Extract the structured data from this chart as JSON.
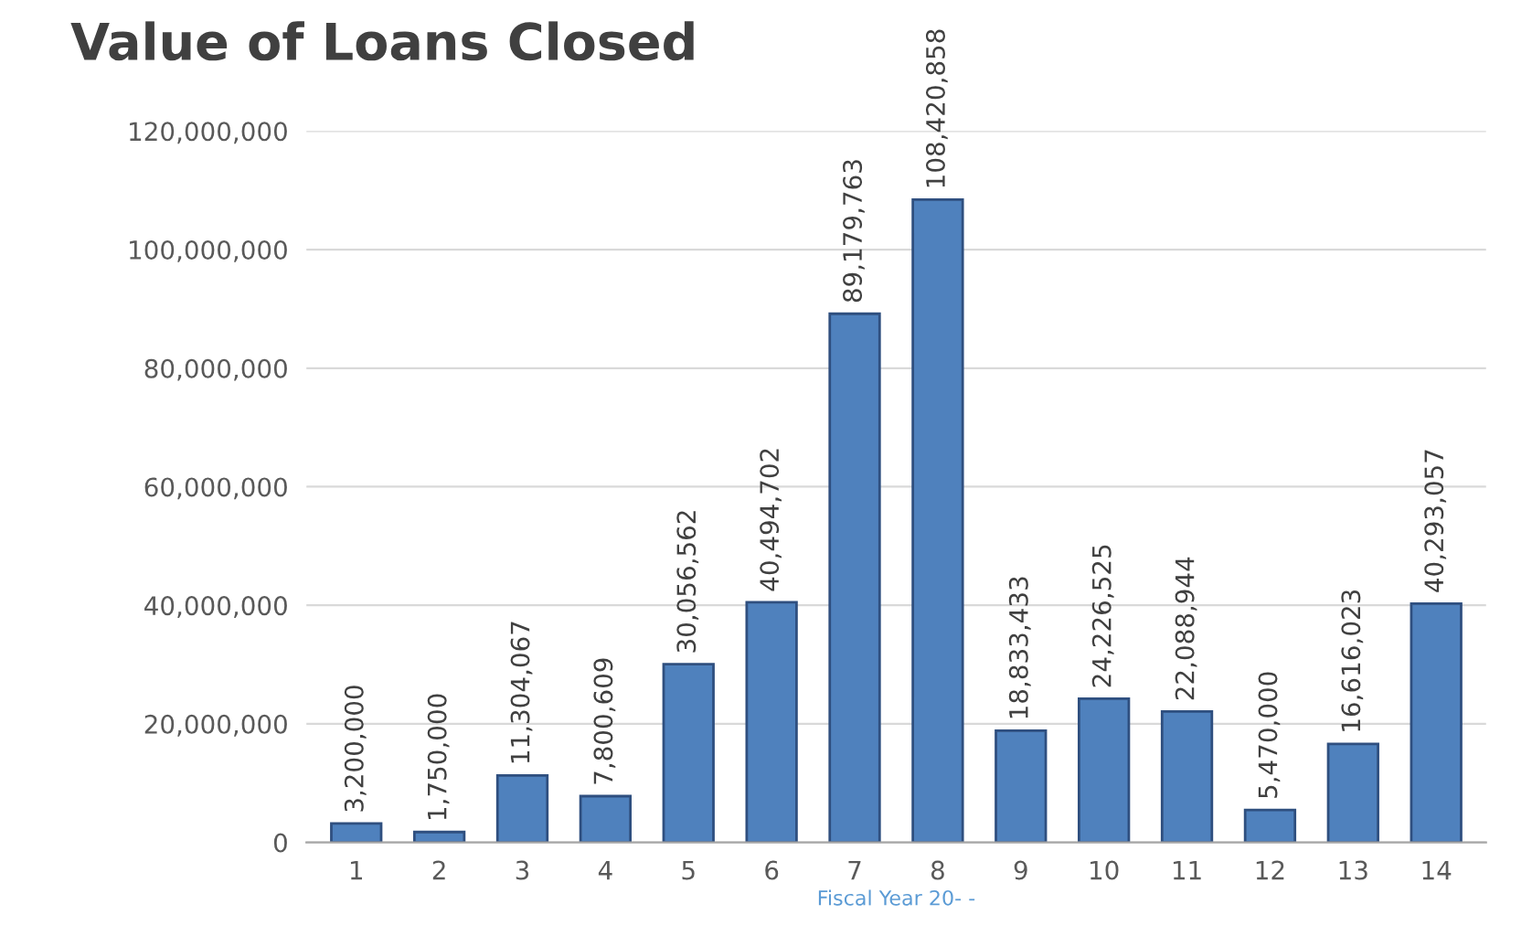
{
  "chart_data": {
    "type": "bar",
    "title": "Value of Loans Closed",
    "xlabel": "Fiscal Year 20- -",
    "categories": [
      "1",
      "2",
      "3",
      "4",
      "5",
      "6",
      "7",
      "8",
      "9",
      "10",
      "11",
      "12",
      "13",
      "14"
    ],
    "values": [
      3200000,
      1750000,
      11304067,
      7800609,
      30056562,
      40494702,
      89179763,
      108420858,
      18833433,
      24226525,
      22088944,
      5470000,
      16616023,
      40293057
    ],
    "value_labels": [
      "3,200,000",
      "1,750,000",
      "11,304,067",
      "7,800,609",
      "30,056,562",
      "40,494,702",
      "89,179,763",
      "108,420,858",
      "18,833,433",
      "24,226,525",
      "22,088,944",
      "5,470,000",
      "16,616,023",
      "40,293,057"
    ],
    "color": "#4f81bd",
    "ylim": [
      0,
      120000000
    ],
    "yticks": [
      {
        "value": 0,
        "label": "0"
      },
      {
        "value": 20000000,
        "label": "20,000,000"
      },
      {
        "value": 40000000,
        "label": "40,000,000"
      },
      {
        "value": 60000000,
        "label": "60,000,000"
      },
      {
        "value": 80000000,
        "label": "80,000,000"
      },
      {
        "value": 100000000,
        "label": "100,000,000"
      },
      {
        "value": 120000000,
        "label": "120,000,000"
      }
    ],
    "grid": "y"
  }
}
